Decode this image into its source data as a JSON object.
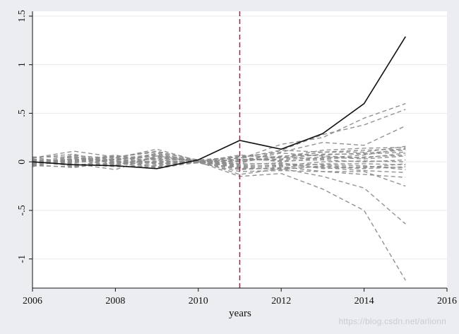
{
  "chart_data": {
    "type": "line",
    "title": "",
    "xlabel": "years",
    "ylabel": "",
    "xlim": [
      2006,
      2016
    ],
    "ylim": [
      -1.3,
      1.55
    ],
    "xticks": [
      2006,
      2008,
      2010,
      2012,
      2014,
      2016
    ],
    "yticks": [
      1.5,
      1,
      0.5,
      0,
      -0.5,
      -1
    ],
    "ytick_labels": [
      "1.5",
      "1",
      ".5",
      "0",
      "-.5",
      "-1"
    ],
    "grid": "horizontal",
    "legend": "none",
    "reference_line": {
      "x": 2011,
      "style": "dashed",
      "color": "#b01c4a"
    },
    "x": [
      2006,
      2007,
      2008,
      2009,
      2010,
      2011,
      2012,
      2013,
      2014,
      2015
    ],
    "treated": {
      "style": "solid",
      "color": "#111111",
      "values": [
        0.0,
        -0.03,
        -0.04,
        -0.07,
        0.02,
        0.22,
        0.13,
        0.29,
        0.6,
        1.29
      ]
    },
    "placebo_style": {
      "style": "dashed",
      "color": "#8c8c8c"
    },
    "placebos": [
      [
        -0.02,
        0.05,
        0.01,
        -0.06,
        0.0,
        0.03,
        0.18,
        0.25,
        0.45,
        0.6
      ],
      [
        0.02,
        -0.01,
        0.03,
        0.08,
        0.01,
        -0.02,
        0.12,
        0.28,
        0.38,
        0.54
      ],
      [
        0.04,
        0.11,
        0.05,
        0.1,
        0.02,
        0.05,
        0.1,
        0.2,
        0.17,
        0.37
      ],
      [
        -0.04,
        -0.05,
        -0.01,
        0.01,
        0.0,
        -0.06,
        -0.05,
        -0.1,
        -0.1,
        -0.25
      ],
      [
        0.05,
        -0.02,
        -0.08,
        0.06,
        0.0,
        -0.15,
        -0.12,
        -0.28,
        -0.5,
        -1.22
      ],
      [
        0.0,
        0.03,
        0.0,
        -0.03,
        0.01,
        -0.13,
        -0.07,
        -0.15,
        -0.27,
        -0.64
      ],
      [
        -0.03,
        0.06,
        0.04,
        0.13,
        0.01,
        0.04,
        0.12,
        0.1,
        0.1,
        0.16
      ],
      [
        0.02,
        -0.04,
        0.02,
        -0.02,
        -0.01,
        0.0,
        0.06,
        0.07,
        0.09,
        0.12
      ],
      [
        -0.01,
        0.02,
        -0.04,
        0.05,
        0.0,
        -0.07,
        -0.07,
        -0.05,
        -0.07,
        -0.05
      ],
      [
        0.03,
        0.0,
        0.06,
        0.03,
        0.01,
        0.02,
        0.02,
        0.05,
        0.03,
        0.06
      ],
      [
        -0.05,
        0.04,
        0.01,
        -0.05,
        -0.01,
        -0.02,
        -0.02,
        -0.03,
        -0.04,
        -0.08
      ],
      [
        0.01,
        -0.03,
        -0.02,
        0.09,
        0.0,
        0.07,
        0.04,
        0.1,
        0.12,
        0.13
      ],
      [
        -0.02,
        0.01,
        0.03,
        -0.01,
        0.01,
        -0.04,
        -0.04,
        0.0,
        0.01,
        0.0
      ],
      [
        0.04,
        0.08,
        -0.03,
        0.04,
        0.0,
        0.01,
        0.09,
        0.06,
        0.04,
        0.09
      ],
      [
        -0.03,
        -0.06,
        0.0,
        0.0,
        -0.01,
        -0.1,
        -0.09,
        -0.1,
        -0.13,
        -0.16
      ],
      [
        0.0,
        0.02,
        0.05,
        0.11,
        0.01,
        0.05,
        0.0,
        0.04,
        0.07,
        0.14
      ],
      [
        0.02,
        -0.02,
        -0.05,
        -0.04,
        0.0,
        -0.05,
        -0.03,
        -0.06,
        -0.09,
        -0.11
      ],
      [
        -0.01,
        0.07,
        0.02,
        0.07,
        0.0,
        0.03,
        0.01,
        0.02,
        0.0,
        0.02
      ],
      [
        0.03,
        -0.05,
        0.04,
        0.02,
        -0.01,
        -0.08,
        -0.06,
        -0.02,
        -0.02,
        -0.03
      ],
      [
        -0.04,
        0.03,
        -0.01,
        -0.07,
        0.0,
        0.0,
        0.05,
        0.03,
        0.05,
        0.07
      ],
      [
        0.01,
        0.0,
        0.02,
        0.06,
        0.01,
        -0.03,
        -0.01,
        -0.07,
        -0.05,
        -0.06
      ],
      [
        0.0,
        -0.04,
        -0.03,
        0.0,
        0.0,
        0.02,
        0.03,
        0.08,
        0.08,
        0.1
      ],
      [
        0.05,
        0.05,
        0.0,
        0.03,
        0.01,
        -0.06,
        -0.08,
        -0.04,
        -0.06,
        -0.02
      ],
      [
        -0.02,
        0.01,
        0.07,
        -0.02,
        0.0,
        0.06,
        0.05,
        0.12,
        0.14,
        0.15
      ]
    ]
  },
  "watermark": "https://blog.csdn.net/arlionn"
}
